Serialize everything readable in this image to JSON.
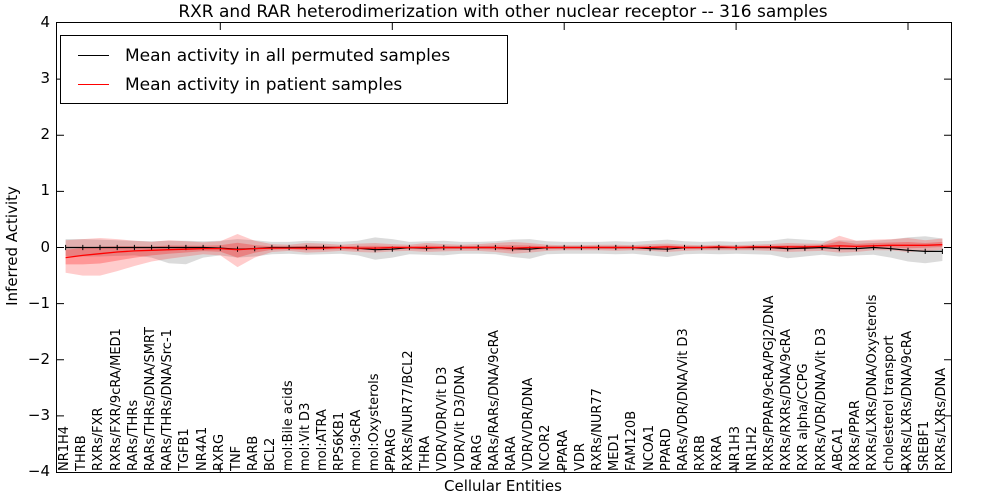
{
  "title": "RXR and RAR heterodimerization with other nuclear receptor -- 316 samples",
  "axes": {
    "ylabel": "Inferred Activity",
    "xlabel": "Cellular Entities",
    "yticks": [
      "4",
      "3",
      "2",
      "1",
      "0",
      "−1",
      "−2",
      "−3",
      "−4"
    ]
  },
  "legend": {
    "entries": [
      {
        "label": "Mean activity in all permuted samples",
        "color": "#000000"
      },
      {
        "label": "Mean activity in patient samples",
        "color": "#ff0000"
      }
    ]
  },
  "chart_data": {
    "type": "line",
    "title": "RXR and RAR heterodimerization with other nuclear receptor -- 316 samples",
    "xlabel": "Cellular Entities",
    "ylabel": "Inferred Activity",
    "ylim": [
      -4,
      4
    ],
    "yticks": [
      4,
      3,
      2,
      1,
      0,
      -1,
      -2,
      -3,
      -4
    ],
    "xtick_indices": [
      9,
      19,
      29,
      39,
      49
    ],
    "grid": false,
    "legend_position": "upper left",
    "categories": [
      "NR1H4",
      "THRB",
      "RXRs/FXR",
      "RXRs/FXR/9cRA/MED1",
      "RARs/THRs",
      "RARs/THRs/DNA/SMRT",
      "RARs/THRs/DNA/Src-1",
      "TGFB1",
      "NR4A1",
      "RXRG",
      "TNF",
      "RARB",
      "BCL2",
      "mol:Bile acids",
      "mol:Vit D3",
      "mol:ATRA",
      "RPS6KB1",
      "mol:9cRA",
      "mol:Oxysterols",
      "PPARG",
      "RXRs/NUR77/BCL2",
      "THRA",
      "VDR/VDR/Vit D3",
      "VDR/Vit D3/DNA",
      "RARG",
      "RARs/RARs/DNA/9cRA",
      "RARA",
      "VDR/VDR/DNA",
      "NCOR2",
      "PPARA",
      "VDR",
      "RXRs/NUR77",
      "MED1",
      "FAM120B",
      "NCOA1",
      "PPARD",
      "RARs/VDR/DNA/Vit D3",
      "RXRB",
      "RXRA",
      "NR1H3",
      "NR1H2",
      "RXRs/PPAR/9cRA/PGJ2/DNA",
      "RXRs/RXRs/DNA/9cRA",
      "RXR alpha/CCPG",
      "RXRs/VDR/DNA/Vit D3",
      "ABCA1",
      "RXRs/PPAR",
      "RXRs/LXRs/DNA/Oxysterols",
      "cholesterol transport",
      "RXRs/LXRs/DNA/9cRA",
      "SREBF1",
      "RXRs/LXRs/DNA"
    ],
    "series": [
      {
        "name": "Mean activity in all permuted samples",
        "color": "#000000",
        "band_color": "rgba(0,0,0,0.14)",
        "values": [
          0,
          0,
          0,
          0,
          0,
          0,
          0,
          0,
          0,
          -0.01,
          -0.03,
          -0.02,
          0,
          0,
          0,
          0,
          0,
          -0.01,
          -0.04,
          -0.03,
          0,
          -0.01,
          0,
          0,
          0,
          0,
          -0.02,
          -0.03,
          0,
          0,
          0,
          0,
          0,
          0,
          -0.02,
          -0.03,
          0,
          0,
          0,
          0,
          0,
          0,
          -0.02,
          -0.01,
          0,
          -0.02,
          -0.02,
          0,
          -0.02,
          -0.05,
          -0.07,
          -0.07
        ],
        "band_upper": [
          0.15,
          0.15,
          0.14,
          0.13,
          0.12,
          0.11,
          0.12,
          0.12,
          0.11,
          0.12,
          0.15,
          0.13,
          0.1,
          0.1,
          0.12,
          0.11,
          0.1,
          0.12,
          0.18,
          0.15,
          0.1,
          0.11,
          0.12,
          0.1,
          0.1,
          0.11,
          0.14,
          0.15,
          0.11,
          0.1,
          0.1,
          0.1,
          0.11,
          0.1,
          0.12,
          0.14,
          0.11,
          0.1,
          0.11,
          0.1,
          0.11,
          0.12,
          0.16,
          0.14,
          0.12,
          0.13,
          0.12,
          0.12,
          0.14,
          0.18,
          0.2,
          0.16
        ],
        "band_lower": [
          -0.15,
          -0.16,
          -0.16,
          -0.15,
          -0.14,
          -0.18,
          -0.28,
          -0.3,
          -0.18,
          -0.14,
          -0.18,
          -0.16,
          -0.12,
          -0.11,
          -0.13,
          -0.12,
          -0.11,
          -0.14,
          -0.22,
          -0.18,
          -0.12,
          -0.13,
          -0.14,
          -0.11,
          -0.11,
          -0.12,
          -0.17,
          -0.2,
          -0.12,
          -0.11,
          -0.11,
          -0.11,
          -0.12,
          -0.11,
          -0.14,
          -0.17,
          -0.12,
          -0.11,
          -0.12,
          -0.11,
          -0.12,
          -0.13,
          -0.19,
          -0.16,
          -0.13,
          -0.16,
          -0.14,
          -0.13,
          -0.18,
          -0.25,
          -0.28,
          -0.24
        ]
      },
      {
        "name": "Mean activity in patient samples",
        "color": "#ff0000",
        "band_color": "rgba(255,0,0,0.20)",
        "values": [
          -0.18,
          -0.14,
          -0.11,
          -0.08,
          -0.06,
          -0.05,
          -0.04,
          -0.03,
          -0.02,
          -0.02,
          -0.04,
          -0.02,
          -0.01,
          -0.01,
          -0.01,
          -0.01,
          0,
          -0.01,
          -0.01,
          0,
          0,
          0,
          0,
          0,
          0,
          0,
          -0.01,
          0,
          0,
          0,
          0,
          0,
          0,
          0,
          0,
          0.01,
          0,
          0,
          0.01,
          0,
          0.01,
          0.01,
          0.01,
          0.01,
          0.02,
          0.03,
          0.02,
          0.03,
          0.04,
          0.04,
          0.04,
          0.05
        ],
        "band_upper": [
          0.13,
          0.15,
          0.17,
          0.15,
          0.12,
          0.1,
          0.13,
          0.11,
          0.09,
          0.11,
          0.24,
          0.12,
          0.06,
          0.05,
          0.08,
          0.07,
          0.05,
          0.07,
          0.08,
          0.06,
          0.05,
          0.08,
          0.06,
          0.05,
          0.06,
          0.08,
          0.1,
          0.08,
          0.05,
          0.04,
          0.04,
          0.05,
          0.05,
          0.04,
          0.06,
          0.07,
          0.05,
          0.04,
          0.05,
          0.04,
          0.05,
          0.06,
          0.08,
          0.07,
          0.07,
          0.21,
          0.12,
          0.14,
          0.15,
          0.17,
          0.13,
          0.16
        ],
        "band_lower": [
          -0.45,
          -0.5,
          -0.5,
          -0.42,
          -0.33,
          -0.25,
          -0.2,
          -0.16,
          -0.12,
          -0.14,
          -0.35,
          -0.18,
          -0.08,
          -0.06,
          -0.09,
          -0.08,
          -0.06,
          -0.08,
          -0.09,
          -0.07,
          -0.06,
          -0.08,
          -0.07,
          -0.06,
          -0.06,
          -0.08,
          -0.11,
          -0.09,
          -0.06,
          -0.05,
          -0.05,
          -0.05,
          -0.06,
          -0.05,
          -0.06,
          -0.08,
          -0.06,
          -0.05,
          -0.05,
          -0.05,
          -0.05,
          -0.06,
          -0.08,
          -0.07,
          -0.06,
          -0.09,
          -0.08,
          -0.05,
          -0.05,
          -0.08,
          -0.06,
          -0.04
        ]
      }
    ]
  }
}
